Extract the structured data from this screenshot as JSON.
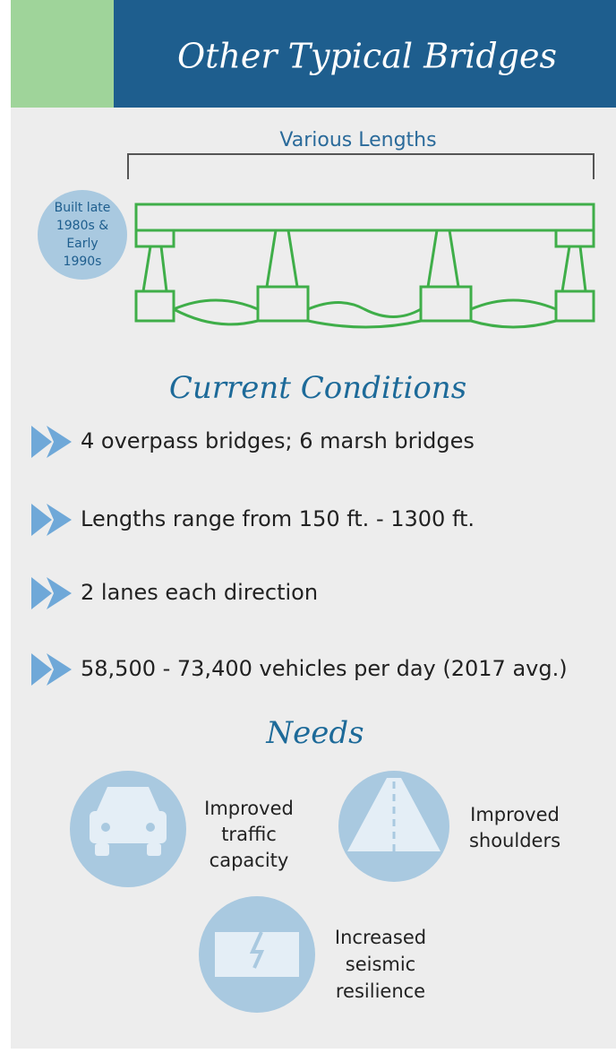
{
  "header": {
    "title": "Other Typical Bridges"
  },
  "bridge": {
    "span_label": "Various Lengths",
    "era": [
      "Built late",
      "1980s &",
      "Early",
      "1990s"
    ]
  },
  "conditions": {
    "title": "Current Conditions",
    "items": [
      "4 overpass bridges; 6 marsh bridges",
      "Lengths range from 150 ft. - 1300 ft.",
      "2 lanes each direction",
      "58,500 - 73,400 vehicles per day (2017 avg.)"
    ]
  },
  "needs": {
    "title": "Needs",
    "items": [
      {
        "label": [
          "Improved",
          "traffic",
          "capacity"
        ]
      },
      {
        "label": [
          "Improved",
          "shoulders"
        ]
      },
      {
        "label": [
          "Increased",
          "seismic",
          "resilience"
        ]
      }
    ]
  }
}
